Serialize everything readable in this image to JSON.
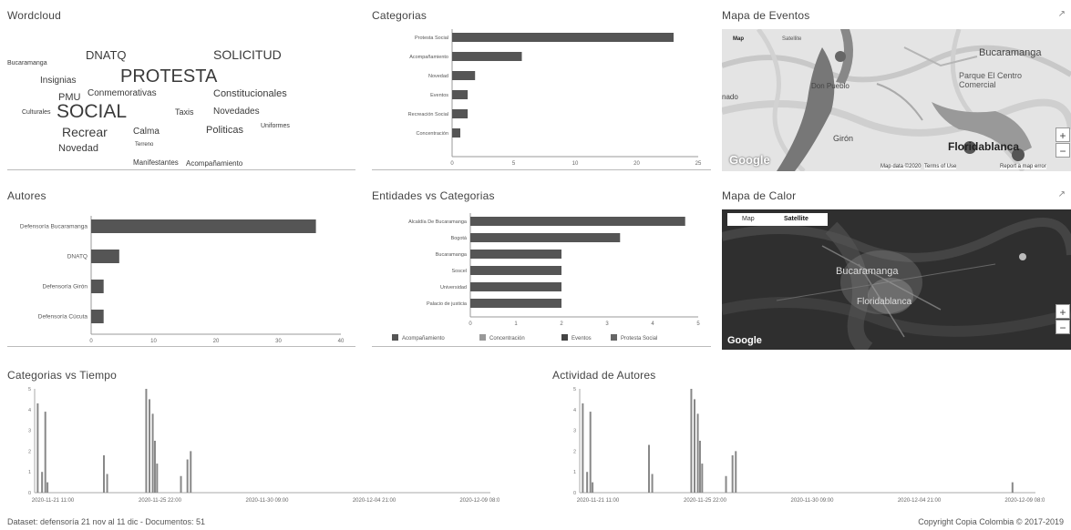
{
  "wordcloud": {
    "title": "Wordcloud",
    "words": [
      "Bucaramanga",
      "DNATQ",
      "SOLICITUD",
      "Insignias",
      "PROTESTA",
      "PMU",
      "Conmemorativas",
      "Constitucionales",
      "Culturales",
      "SOCIAL",
      "Taxis",
      "Novedades",
      "Recrear",
      "Calma",
      "Politicas",
      "Uniformes",
      "Novedad",
      "Terreno",
      "Manifestantes",
      "Acompañamiento"
    ]
  },
  "categorias": {
    "title": "Categorias",
    "chart_data": {
      "type": "bar",
      "orientation": "horizontal",
      "categories": [
        "Protesta Social",
        "Acompañamiento",
        "Novedad",
        "Eventos",
        "Recreación Social",
        "Concentración"
      ],
      "values": [
        27,
        8.5,
        2.8,
        1.9,
        1.9,
        1
      ],
      "xlim": [
        0,
        30
      ],
      "xticks": [
        "0",
        "5",
        "10",
        "20",
        "25"
      ],
      "color": "#555555"
    }
  },
  "mapa_eventos": {
    "title": "Mapa de Eventos",
    "map_button": "Map",
    "satellite_button": "Satellite",
    "places": [
      "Bucaramanga",
      "Parque El Centro Comercial",
      "Don Pueblo",
      "Girón",
      "Floridablanca"
    ],
    "side_label": "nado",
    "logo": "Google",
    "attribution": [
      "Map data ©2020",
      "Terms of Use",
      "Report a map error"
    ],
    "zoom_in": "+",
    "zoom_out": "−",
    "expand_icon": "↗"
  },
  "autores": {
    "title": "Autores",
    "chart_data": {
      "type": "bar",
      "orientation": "horizontal",
      "categories": [
        "Defensoría Bucaramanga",
        "DNATQ",
        "Defensoría Girón",
        "Defensoría Cúcuta"
      ],
      "values": [
        36,
        4.5,
        2,
        2
      ],
      "xlim": [
        0,
        40
      ],
      "xticks": [
        "0",
        "10",
        "20",
        "30",
        "40"
      ],
      "color": "#555555"
    }
  },
  "entidades": {
    "title": "Entidades vs Categorias",
    "chart_data": {
      "type": "bar",
      "orientation": "horizontal",
      "stacked": true,
      "categories": [
        "Alcaldía De Bucaramanga",
        "Bogotá",
        "Bucaramanga",
        "Soscel",
        "Universidad",
        "Palacio de justicia"
      ],
      "series": [
        {
          "name": "Acompañamiento",
          "values": [
            6.6,
            4.6,
            2.8,
            2.8,
            2.8,
            2.8
          ],
          "color": "#555555"
        },
        {
          "name": "Concentración",
          "values": [
            0,
            0,
            0,
            0,
            0,
            0
          ],
          "color": "#999999"
        },
        {
          "name": "Eventos",
          "values": [
            0,
            0,
            0,
            0,
            0,
            0
          ],
          "color": "#444444"
        },
        {
          "name": "Protesta Social",
          "values": [
            0,
            0,
            0,
            0,
            0,
            0
          ],
          "color": "#666666"
        }
      ],
      "xlim": [
        0,
        7
      ],
      "xticks": [
        "0",
        "1",
        "2",
        "3",
        "4",
        "5"
      ],
      "legend": "bottom"
    }
  },
  "mapa_calor": {
    "title": "Mapa de Calor",
    "map_button": "Map",
    "satellite_button": "Satellite",
    "places": [
      "Bucaramanga",
      "Floridablanca"
    ],
    "logo": "Google",
    "zoom_in": "+",
    "zoom_out": "−",
    "expand_icon": "↗"
  },
  "categorias_tiempo": {
    "title": "Categorias vs Tiempo",
    "chart_data": {
      "type": "bar",
      "xticks": [
        "2020-11-21 11:00",
        "2020-11-25 22:00",
        "2020-11-30 09:00",
        "2020-12-04 21:00",
        "2020-12-09 08:00"
      ],
      "ylim": [
        0,
        5
      ],
      "yticks": [
        "0",
        "1",
        "2",
        "3",
        "4",
        "5"
      ],
      "x": [
        0.2,
        0.6,
        0.9,
        1.1,
        6.3,
        6.6,
        10.2,
        10.5,
        10.8,
        11.0,
        11.2,
        13.4,
        14.0,
        14.3
      ],
      "values": [
        4.3,
        1.0,
        3.9,
        0.5,
        1.8,
        0.9,
        5.0,
        4.5,
        3.8,
        2.5,
        1.4,
        0.8,
        1.6,
        2.0
      ]
    }
  },
  "actividad_autores": {
    "title": "Actividad de Autores",
    "chart_data": {
      "type": "bar",
      "xticks": [
        "2020-11-21 11:00",
        "2020-11-25 22:00",
        "2020-11-30 09:00",
        "2020-12-04 21:00",
        "2020-12-09 08:00"
      ],
      "ylim": [
        0,
        5
      ],
      "yticks": [
        "0",
        "1",
        "2",
        "3",
        "4",
        "5"
      ],
      "x": [
        0.2,
        0.6,
        0.9,
        1.1,
        6.3,
        6.6,
        10.2,
        10.5,
        10.8,
        11.0,
        11.2,
        13.4,
        14.0,
        14.3,
        39.8
      ],
      "values": [
        4.3,
        1.0,
        3.9,
        0.5,
        2.3,
        0.9,
        5.0,
        4.5,
        3.8,
        2.5,
        1.4,
        0.8,
        1.8,
        2.0,
        0.5
      ]
    }
  },
  "footer": {
    "dataset": "Dataset: defensoría 21 nov al 11 dic - Documentos: 51",
    "copyright": "Copyright Copia Colombia © 2017-2019"
  }
}
